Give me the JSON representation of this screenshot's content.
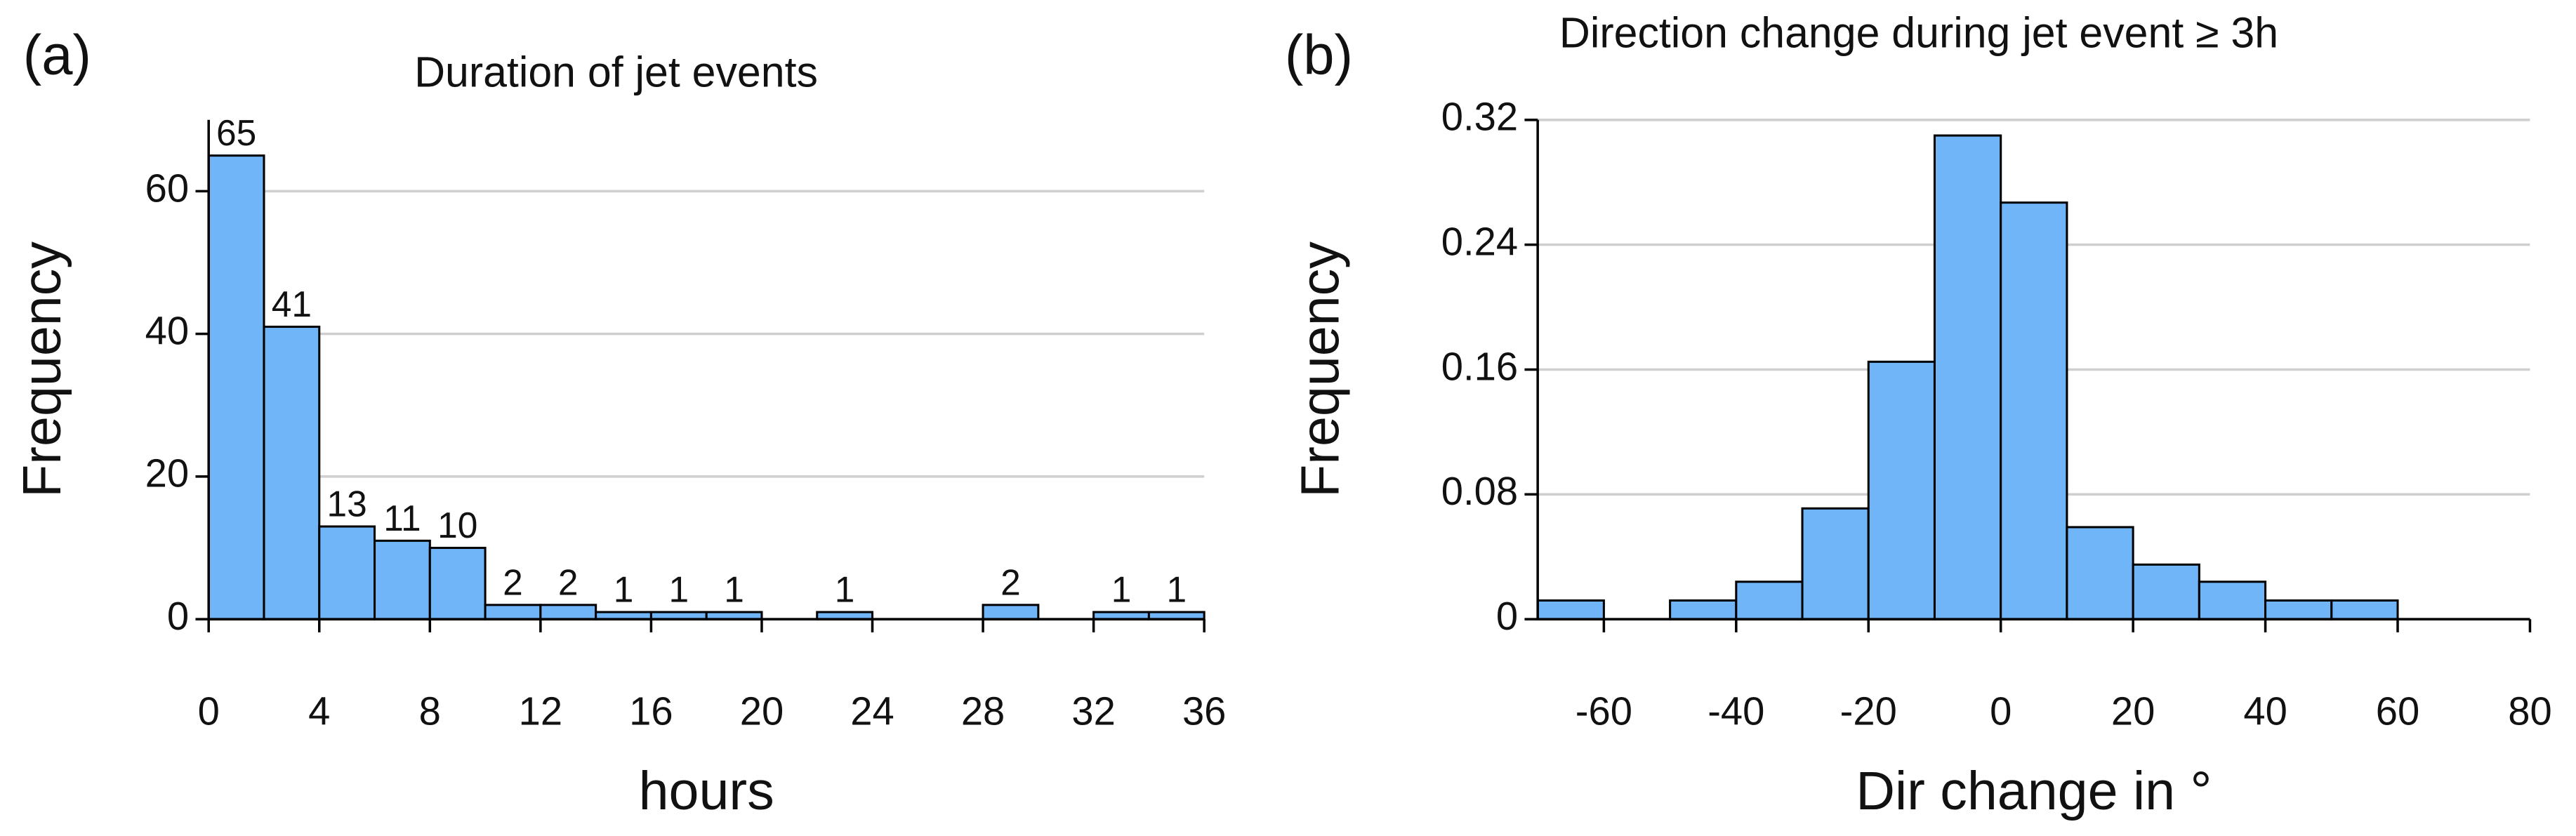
{
  "chart_data": [
    {
      "type": "histogram",
      "panel_label": "(a)",
      "title": "Duration of jet events",
      "x_label": "hours",
      "y_label": "Frequency",
      "bins": [
        0,
        2,
        4,
        6,
        8,
        10,
        12,
        14,
        16,
        18,
        20,
        22,
        24,
        26,
        28,
        30,
        32,
        34,
        36
      ],
      "values": [
        65,
        41,
        13,
        11,
        10,
        2,
        2,
        1,
        1,
        1,
        0,
        1,
        0,
        0,
        2,
        0,
        1,
        1
      ],
      "color": "#6fb5f8",
      "xlim": [
        0,
        36
      ],
      "xticks": [
        0,
        4,
        8,
        12,
        16,
        20,
        24,
        28,
        32,
        36
      ],
      "ylim": [
        0,
        70
      ],
      "yticks": [
        0,
        20,
        40,
        60
      ],
      "grid": true,
      "data_labels": true
    },
    {
      "type": "histogram",
      "panel_label": "(b)",
      "title": "Direction change during jet event ≥ 3h",
      "x_label": "Dir change in °",
      "y_label": "Frequency",
      "bins": [
        -70,
        -60,
        -50,
        -40,
        -30,
        -20,
        -10,
        0,
        10,
        20,
        30,
        40,
        50,
        60,
        70,
        80
      ],
      "values": [
        0.012,
        0,
        0.012,
        0.024,
        0.071,
        0.165,
        0.31,
        0.267,
        0.059,
        0.035,
        0.024,
        0.012,
        0.012,
        0,
        0
      ],
      "color": "#6fb5f8",
      "xlim": [
        -70,
        80
      ],
      "xticks": [
        -60,
        -40,
        -20,
        0,
        20,
        40,
        60,
        80
      ],
      "ylim": [
        0,
        0.32
      ],
      "yticks": [
        0,
        0.08,
        0.16,
        0.24,
        0.32
      ],
      "grid": true,
      "data_labels": false
    }
  ]
}
